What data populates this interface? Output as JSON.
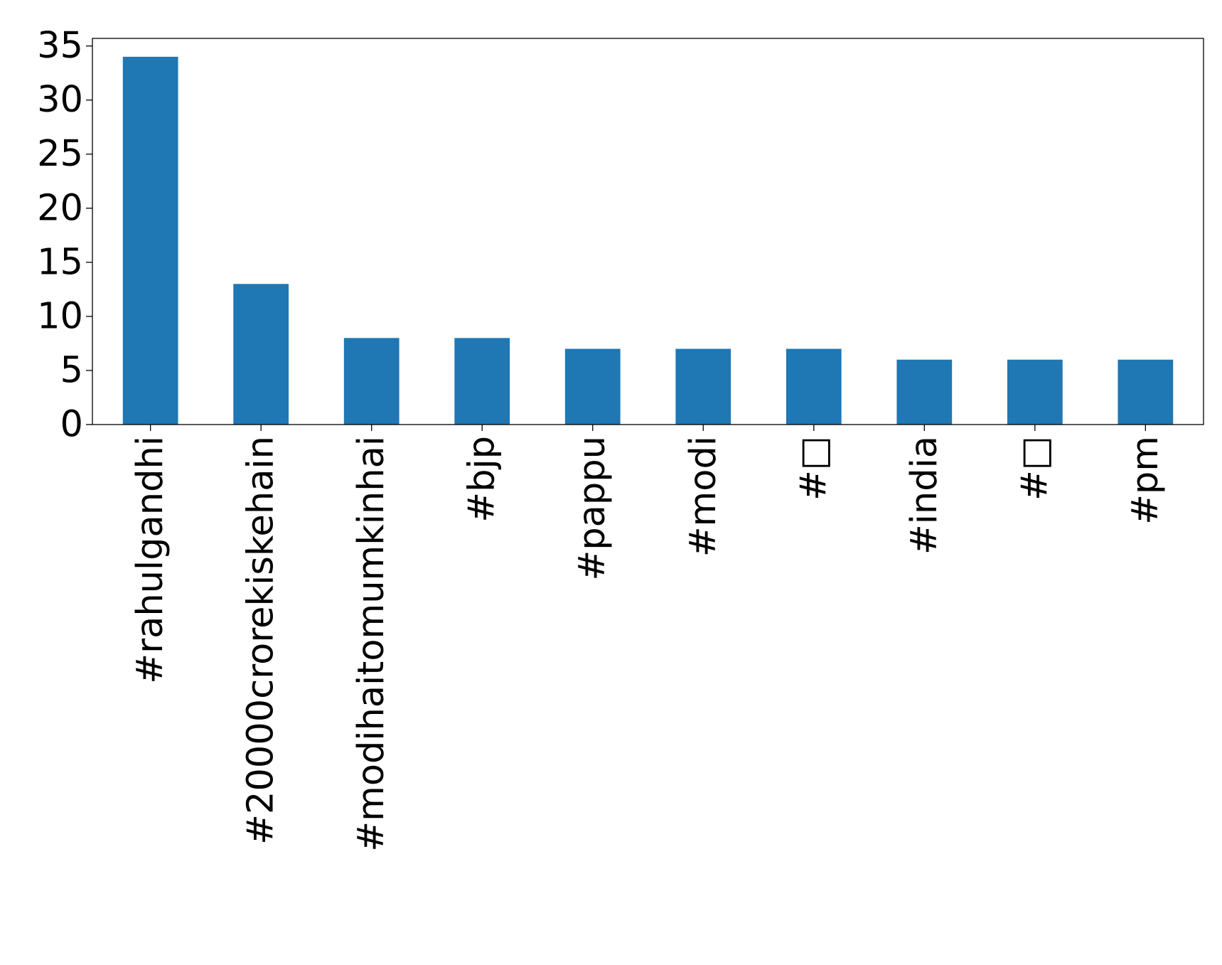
{
  "chart_data": {
    "type": "bar",
    "categories": [
      "#rahulgandhi",
      "#20000crorekiskehain",
      "#modihaitomumkinhai",
      "#bjp",
      "#pappu",
      "#modi",
      "#□",
      "#india",
      "#□",
      "#pm"
    ],
    "values": [
      34,
      13,
      8,
      8,
      7,
      7,
      7,
      6,
      6,
      6
    ],
    "yticks": [
      "0",
      "5",
      "10",
      "15",
      "20",
      "25",
      "30",
      "35"
    ],
    "ylim": [
      0,
      35.7
    ],
    "grid": false,
    "legend": "none",
    "bar_color": "#1f77b4",
    "title": "",
    "xlabel": "",
    "ylabel": ""
  }
}
